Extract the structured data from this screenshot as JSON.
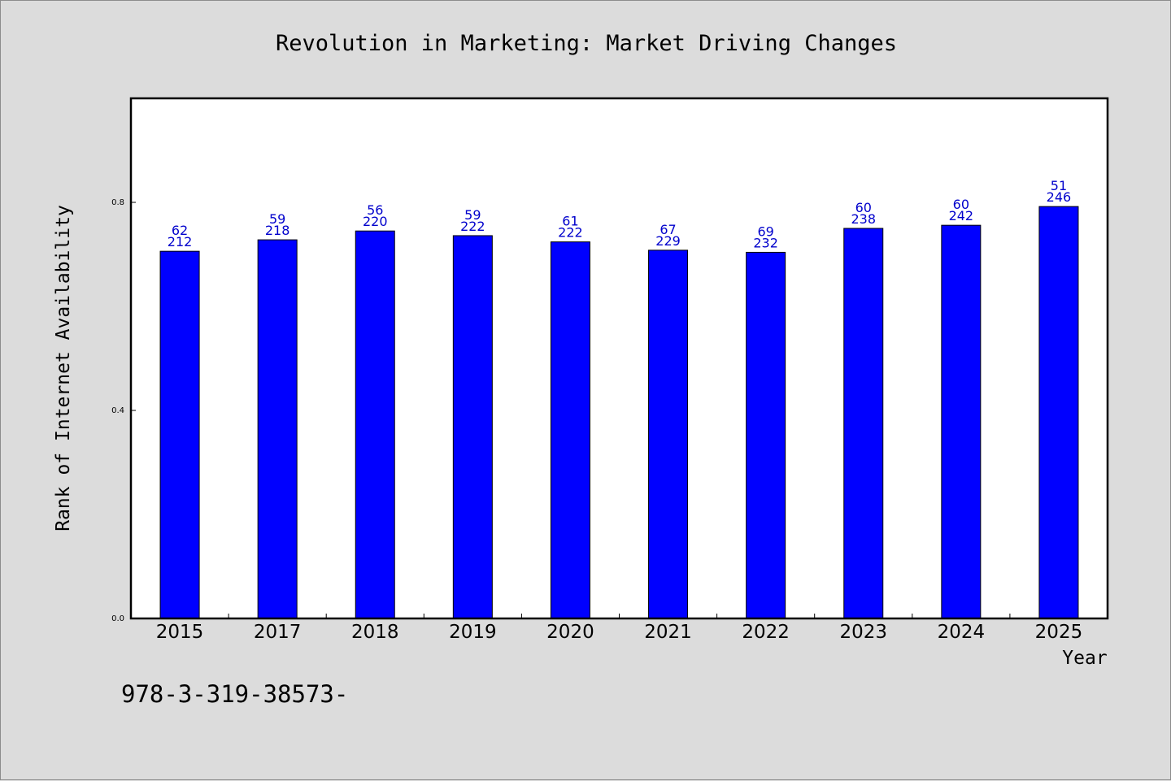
{
  "chart_data": {
    "type": "bar",
    "title": "Revolution in Marketing: Market Driving Changes",
    "xlabel": "Year",
    "ylabel": "Rank of Internet Availability",
    "categories": [
      "2015",
      "2017",
      "2018",
      "2019",
      "2020",
      "2021",
      "2022",
      "2023",
      "2024",
      "2025"
    ],
    "values": [
      0.706,
      0.728,
      0.745,
      0.736,
      0.724,
      0.708,
      0.704,
      0.75,
      0.756,
      0.792
    ],
    "label_top": [
      "62",
      "59",
      "56",
      "59",
      "61",
      "67",
      "69",
      "60",
      "60",
      "51"
    ],
    "label_bottom": [
      "212",
      "218",
      "220",
      "222",
      "222",
      "229",
      "232",
      "238",
      "242",
      "246"
    ],
    "ylim": [
      0,
      1.0
    ],
    "yticks": [
      0.0,
      0.4,
      0.8
    ],
    "ytick_labels": [
      "0.0",
      "0.4",
      "0.8"
    ],
    "grid": false,
    "bar_color": "#0000ff",
    "label_color": "#0000cc"
  },
  "footnote": "978-3-319-38573-"
}
